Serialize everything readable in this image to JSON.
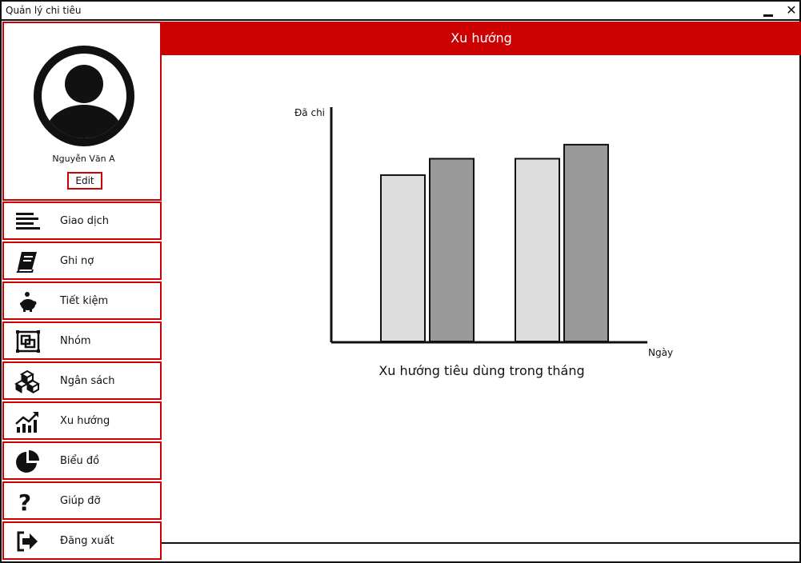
{
  "window": {
    "title": "Quản lý chi tiêu"
  },
  "profile": {
    "name": "Nguyễn Văn A",
    "edit_label": "Edit"
  },
  "nav": {
    "items": [
      {
        "label": "Giao dịch",
        "icon": "list-icon"
      },
      {
        "label": "Ghi nợ",
        "icon": "book-icon"
      },
      {
        "label": "Tiết kiệm",
        "icon": "piggy-bank-icon"
      },
      {
        "label": "Nhóm",
        "icon": "group-icon"
      },
      {
        "label": "Ngân sách",
        "icon": "boxes-icon"
      },
      {
        "label": "Xu hướng",
        "icon": "trend-chart-icon"
      },
      {
        "label": "Biểu đồ",
        "icon": "pie-chart-icon"
      },
      {
        "label": "Giúp đỡ",
        "icon": "help-icon"
      },
      {
        "label": "Đăng xuất",
        "icon": "logout-icon"
      }
    ]
  },
  "header": {
    "title": "Xu hướng"
  },
  "chart_data": {
    "type": "bar",
    "categories": [
      "",
      ""
    ],
    "series": [
      {
        "values": [
          71,
          78
        ],
        "color": "#dddddd"
      },
      {
        "values": [
          78,
          84
        ],
        "color": "#999999"
      }
    ],
    "ylim": [
      0,
      100
    ],
    "ylabel": "Đã chi",
    "xlabel": "Ngày",
    "caption": "Xu hướng tiêu dùng trong tháng"
  },
  "colors": {
    "accent": "#cc0000",
    "bar_light": "#dddddd",
    "bar_dark": "#999999"
  }
}
